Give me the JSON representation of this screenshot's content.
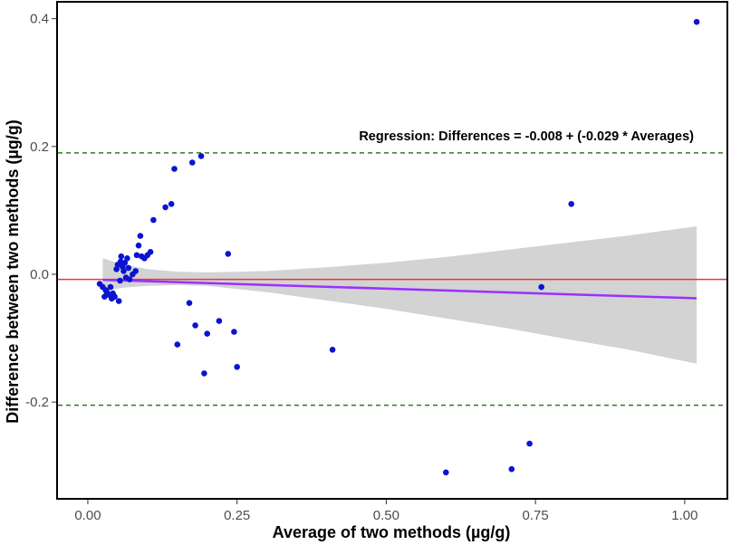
{
  "chart_data": {
    "type": "scatter",
    "subtype": "bland-altman",
    "xlabel": "Average of two methods (µg/g)",
    "ylabel": "Difference between two methods (µg/g)",
    "xlim": [
      -0.05,
      1.07
    ],
    "ylim": [
      -0.35,
      0.425
    ],
    "x_ticks": [
      0.0,
      0.25,
      0.5,
      0.75,
      1.0
    ],
    "x_tick_labels": [
      "0.00",
      "0.25",
      "0.50",
      "0.75",
      "1.00"
    ],
    "y_ticks": [
      -0.2,
      0.0,
      0.2,
      0.4
    ],
    "y_tick_labels": [
      "-0.2",
      "0.0",
      "0.2",
      "0.4"
    ],
    "grid": false,
    "annotation": "Regression: Differences = -0.008 + (-0.029 * Averages)",
    "mean_difference": -0.008,
    "limits_of_agreement": {
      "upper": 0.19,
      "lower": -0.205
    },
    "regression": {
      "intercept": -0.008,
      "slope": -0.029,
      "x_range": [
        0.025,
        1.02
      ]
    },
    "confidence_band": {
      "x": [
        0.025,
        0.06,
        0.1,
        0.15,
        0.2,
        0.3,
        0.4,
        0.5,
        0.6,
        0.7,
        0.8,
        0.9,
        1.02
      ],
      "upper": [
        0.025,
        0.015,
        0.008,
        0.004,
        0.003,
        0.005,
        0.011,
        0.018,
        0.027,
        0.038,
        0.049,
        0.06,
        0.075
      ],
      "lower": [
        -0.027,
        -0.021,
        -0.018,
        -0.017,
        -0.018,
        -0.028,
        -0.041,
        -0.054,
        -0.069,
        -0.084,
        -0.101,
        -0.117,
        -0.14
      ]
    },
    "colors": {
      "points": "#0a14d0",
      "mean_line": "#e8343c",
      "loa_lines": "#2e7d1f",
      "regression_line": "#9b30ff",
      "band": "#d3d3d3"
    },
    "points": [
      {
        "x": 0.02,
        "y": -0.015
      },
      {
        "x": 0.025,
        "y": -0.02
      },
      {
        "x": 0.028,
        "y": -0.035
      },
      {
        "x": 0.03,
        "y": -0.025
      },
      {
        "x": 0.032,
        "y": -0.028
      },
      {
        "x": 0.035,
        "y": -0.032
      },
      {
        "x": 0.038,
        "y": -0.02
      },
      {
        "x": 0.04,
        "y": -0.038
      },
      {
        "x": 0.042,
        "y": -0.03
      },
      {
        "x": 0.045,
        "y": -0.035
      },
      {
        "x": 0.048,
        "y": 0.008
      },
      {
        "x": 0.05,
        "y": 0.015
      },
      {
        "x": 0.052,
        "y": -0.042
      },
      {
        "x": 0.054,
        "y": -0.01
      },
      {
        "x": 0.055,
        "y": 0.02
      },
      {
        "x": 0.056,
        "y": 0.028
      },
      {
        "x": 0.058,
        "y": 0.012
      },
      {
        "x": 0.06,
        "y": 0.005
      },
      {
        "x": 0.062,
        "y": 0.018
      },
      {
        "x": 0.064,
        "y": -0.005
      },
      {
        "x": 0.066,
        "y": 0.025
      },
      {
        "x": 0.068,
        "y": 0.01
      },
      {
        "x": 0.07,
        "y": -0.008
      },
      {
        "x": 0.075,
        "y": 0.0
      },
      {
        "x": 0.08,
        "y": 0.005
      },
      {
        "x": 0.082,
        "y": 0.03
      },
      {
        "x": 0.085,
        "y": 0.045
      },
      {
        "x": 0.088,
        "y": 0.06
      },
      {
        "x": 0.09,
        "y": 0.028
      },
      {
        "x": 0.095,
        "y": 0.025
      },
      {
        "x": 0.1,
        "y": 0.03
      },
      {
        "x": 0.105,
        "y": 0.035
      },
      {
        "x": 0.11,
        "y": 0.085
      },
      {
        "x": 0.13,
        "y": 0.105
      },
      {
        "x": 0.14,
        "y": 0.11
      },
      {
        "x": 0.145,
        "y": 0.165
      },
      {
        "x": 0.15,
        "y": -0.11
      },
      {
        "x": 0.17,
        "y": -0.045
      },
      {
        "x": 0.175,
        "y": 0.175
      },
      {
        "x": 0.18,
        "y": -0.08
      },
      {
        "x": 0.19,
        "y": 0.185
      },
      {
        "x": 0.195,
        "y": -0.155
      },
      {
        "x": 0.2,
        "y": -0.093
      },
      {
        "x": 0.22,
        "y": -0.073
      },
      {
        "x": 0.235,
        "y": 0.032
      },
      {
        "x": 0.245,
        "y": -0.09
      },
      {
        "x": 0.25,
        "y": -0.145
      },
      {
        "x": 0.41,
        "y": -0.118
      },
      {
        "x": 0.6,
        "y": -0.31
      },
      {
        "x": 0.71,
        "y": -0.305
      },
      {
        "x": 0.74,
        "y": -0.265
      },
      {
        "x": 0.76,
        "y": -0.02
      },
      {
        "x": 0.81,
        "y": 0.11
      },
      {
        "x": 1.02,
        "y": 0.395
      }
    ]
  }
}
